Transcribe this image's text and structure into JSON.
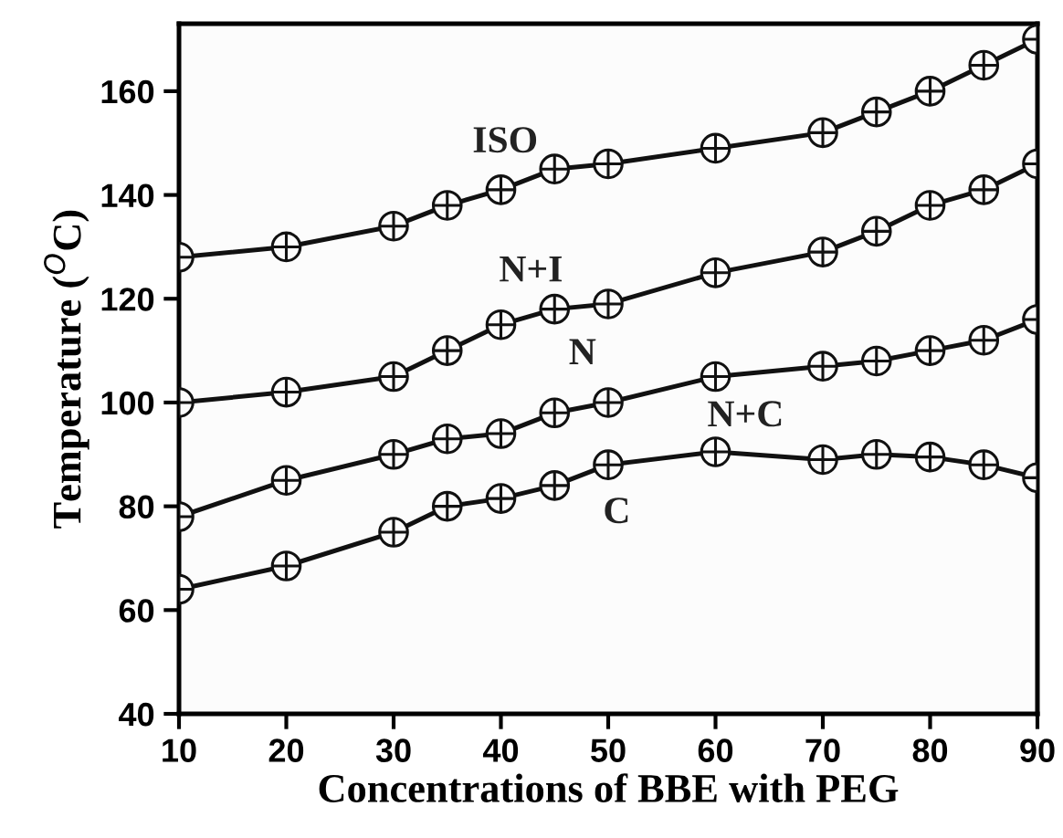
{
  "chart_data": {
    "type": "line",
    "xlabel": "Concentrations of BBE with PEG",
    "ylabel": "Temperature ($^{O}$C)",
    "x": [
      10,
      20,
      30,
      35,
      40,
      45,
      50,
      60,
      70,
      75,
      80,
      85,
      90
    ],
    "series": [
      {
        "color": "#111111",
        "values": [
          128,
          130,
          134,
          138,
          141,
          145,
          146,
          149,
          152,
          156,
          160,
          165,
          170
        ]
      },
      {
        "color": "#111111",
        "values": [
          100,
          102,
          105,
          110,
          115,
          118,
          119,
          125,
          129,
          133,
          138,
          141,
          146
        ]
      },
      {
        "color": "#111111",
        "values": [
          78,
          85,
          90,
          93,
          94,
          98,
          100,
          105,
          107,
          108,
          110,
          112,
          116
        ]
      },
      {
        "color": "#111111",
        "values": [
          64,
          68.5,
          75,
          80,
          81.5,
          84,
          88,
          90.5,
          89,
          90,
          89.5,
          88,
          85.5
        ]
      }
    ],
    "annotations": [
      "ISO",
      "N+I",
      "N",
      "N+C",
      "C"
    ],
    "xlim": [
      10,
      90
    ],
    "ylim": [
      40,
      173
    ],
    "xticks": [
      10,
      20,
      30,
      40,
      50,
      60,
      70,
      80,
      90
    ],
    "yticks": [
      40,
      60,
      80,
      100,
      120,
      140,
      160
    ],
    "marker": "circle",
    "line_style": "solid",
    "grid": false,
    "legend": false
  }
}
